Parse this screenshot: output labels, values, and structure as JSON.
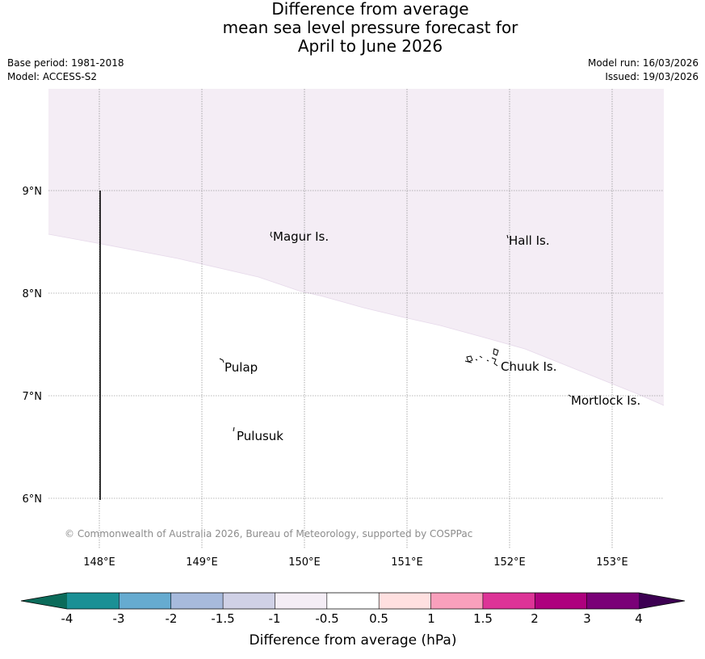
{
  "title": {
    "line1": "Difference from average",
    "line2": "mean sea level pressure forecast for",
    "line3": "April to June 2026"
  },
  "meta": {
    "base_period": "Base period: 1981-2018",
    "model": "Model: ACCESS-S2",
    "model_run": "Model run: 16/03/2026",
    "issued": "Issued: 19/03/2026"
  },
  "map": {
    "lat_ticks": [
      "9°N",
      "8°N",
      "7°N",
      "6°N"
    ],
    "lon_ticks": [
      "148°E",
      "149°E",
      "150°E",
      "151°E",
      "152°E",
      "153°E"
    ],
    "places": [
      {
        "name": "Magur Is."
      },
      {
        "name": "Hall Is."
      },
      {
        "name": "Pulap"
      },
      {
        "name": "Chuuk Is."
      },
      {
        "name": "Mortlock Is."
      },
      {
        "name": "Pulusuk"
      }
    ],
    "shaded_region_color": "#f4edf5",
    "copyright": "© Commonwealth of Australia 2026, Bureau of Meteorology, supported by COSPPac"
  },
  "colorbar": {
    "label": "Difference from average (hPa)",
    "ticks": [
      "-4",
      "-3",
      "-2",
      "-1.5",
      "-1",
      "-0.5",
      "0.5",
      "1",
      "1.5",
      "2",
      "3",
      "4"
    ],
    "under_color": "#0b6b5a",
    "over_color": "#3d0052",
    "colors": [
      "#1b9095",
      "#66abd0",
      "#a7badc",
      "#d0d1e6",
      "#f4edf5",
      "#ffffff",
      "#ffe0e0",
      "#f9a0bc",
      "#dd3497",
      "#ae017e",
      "#7a0177"
    ]
  }
}
